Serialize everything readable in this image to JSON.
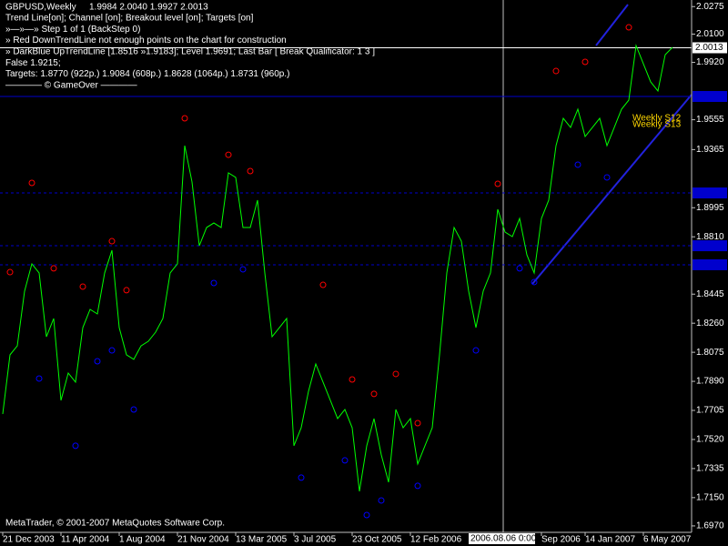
{
  "chart_data": {
    "type": "line",
    "title": "GBPUSD,Weekly",
    "subtitle": "1.9984 2.0040 1.9927 2.0013",
    "annotations": [
      "Trend Line[on]; Channel [on]; Breakout level [on]; Targets [on]",
      "»—»—» Step 1 of 1 (BackStep 0)",
      "» Red DownTrendLine not enough points on the chart for construction",
      "» DarkBlue UpTrendLine [1.8516 »1.9183]; Level 1.9691; Last Bar [ Break Qualificator: 1 3 ]",
      "False 1.9215;",
      "Targets: 1.8770 (922p.) 1.9084 (608p.) 1.8628 (1064p.) 1.8731 (960p.)",
      "———— © GameOver ————"
    ],
    "footer": "MetaTrader, © 2001-2007 MetaQuotes Software Corp.",
    "crosshair_label": "2006.08.06 0:00",
    "level_notes": [
      "Weekly S12",
      "Weekly S13"
    ],
    "categories": [
      "21 Dec 2003",
      null,
      null,
      null,
      null,
      null,
      null,
      null,
      "11 Apr 2004",
      null,
      null,
      null,
      null,
      null,
      null,
      null,
      "1 Aug 2004",
      null,
      null,
      null,
      null,
      null,
      null,
      null,
      "21 Nov 2004",
      null,
      null,
      null,
      null,
      null,
      null,
      null,
      "13 Mar 2005",
      null,
      null,
      null,
      null,
      null,
      null,
      null,
      "3 Jul 2005",
      null,
      null,
      null,
      null,
      null,
      null,
      null,
      "23 Oct 2005",
      null,
      null,
      null,
      null,
      null,
      null,
      null,
      "12 Feb 2006",
      null,
      null,
      null,
      null,
      null,
      null,
      null,
      null,
      null,
      null,
      null,
      null,
      null,
      null,
      null,
      null,
      null,
      "Sep 2006",
      null,
      null,
      null,
      null,
      null,
      "14 Jan 2007",
      null,
      null,
      null,
      null,
      null,
      null,
      null,
      "6 May 2007",
      null,
      null,
      null,
      null
    ],
    "series": [
      {
        "color": "#00ff00",
        "style": "line",
        "values": [
          1.7682,
          1.8059,
          1.8116,
          1.8464,
          1.8638,
          1.858,
          1.8174,
          1.829,
          1.7769,
          1.7943,
          1.7885,
          1.8232,
          1.8348,
          1.8319,
          1.858,
          1.8724,
          1.8232,
          1.8059,
          1.803,
          1.8116,
          1.8145,
          1.8203,
          1.829,
          1.858,
          1.8638,
          1.939,
          1.9159,
          1.8753,
          1.8869,
          1.8898,
          1.8869,
          1.9217,
          1.9188,
          1.8869,
          1.8869,
          1.9043,
          1.858,
          1.8174,
          1.8232,
          1.829,
          1.748,
          1.7595,
          1.7827,
          1.8001,
          1.7885,
          1.7769,
          1.7653,
          1.7711,
          1.7595,
          1.719,
          1.748,
          1.7653,
          1.7422,
          1.7248,
          1.7711,
          1.7595,
          1.7653,
          1.7364,
          1.748,
          1.7595,
          1.8059,
          1.858,
          1.8869,
          1.8782,
          1.8464,
          1.8232,
          1.8464,
          1.858,
          1.8985,
          1.884,
          1.8811,
          1.8927,
          1.8695,
          1.858,
          1.8927,
          1.9043,
          1.939,
          1.9564,
          1.9506,
          1.9622,
          1.9448,
          1.9506,
          1.9564,
          1.939,
          1.9506,
          1.9622,
          1.968,
          2.0027,
          1.9911,
          1.9796,
          1.9738,
          1.9969,
          2.0016
        ]
      },
      {
        "color": "#ff0000",
        "style": "marker",
        "values": [
          null,
          1.8585,
          null,
          null,
          1.9153,
          null,
          null,
          1.8609,
          null,
          null,
          null,
          1.8493,
          null,
          null,
          null,
          1.8782,
          null,
          1.847,
          null,
          null,
          null,
          null,
          null,
          null,
          null,
          1.9564,
          null,
          null,
          null,
          null,
          null,
          1.9332,
          null,
          null,
          1.9228,
          null,
          null,
          null,
          null,
          null,
          null,
          null,
          null,
          null,
          1.8504,
          null,
          null,
          null,
          1.7902,
          null,
          null,
          1.781,
          null,
          null,
          1.7937,
          null,
          null,
          1.7624,
          null,
          null,
          null,
          null,
          null,
          null,
          null,
          null,
          null,
          null,
          1.9147,
          null,
          null,
          null,
          null,
          null,
          null,
          null,
          1.9865,
          null,
          null,
          null,
          1.9923,
          null,
          null,
          null,
          null,
          null,
          2.0143,
          null,
          null,
          null,
          null,
          null,
          null
        ]
      },
      {
        "color": "#0000ff",
        "style": "marker",
        "values": [
          null,
          null,
          null,
          null,
          null,
          1.7908,
          null,
          null,
          null,
          null,
          1.748,
          null,
          null,
          1.8018,
          null,
          1.8087,
          null,
          null,
          1.7711,
          null,
          null,
          null,
          null,
          null,
          null,
          null,
          null,
          null,
          null,
          1.8516,
          null,
          null,
          null,
          1.8603,
          null,
          null,
          null,
          null,
          null,
          null,
          null,
          1.7277,
          null,
          null,
          null,
          null,
          null,
          1.7387,
          null,
          null,
          1.7039,
          null,
          1.7132,
          null,
          null,
          null,
          null,
          1.7225,
          null,
          null,
          null,
          null,
          null,
          null,
          null,
          1.8087,
          null,
          null,
          null,
          null,
          null,
          1.8609,
          null,
          1.8522,
          null,
          null,
          null,
          null,
          null,
          1.9269,
          null,
          null,
          null,
          1.9188,
          null,
          null,
          null,
          null,
          null,
          null,
          null,
          null,
          null
        ]
      }
    ],
    "levels": [
      {
        "value": 2.0013,
        "color": "#ffffff",
        "style": "solid",
        "labeled": true
      },
      {
        "value": 1.9703,
        "color": "#0000cd",
        "style": "solid",
        "labeled": false
      },
      {
        "value": 1.9089,
        "color": "#0000cd",
        "style": "dashed",
        "labeled": false
      },
      {
        "value": 1.8753,
        "color": "#0000cd",
        "style": "dashed",
        "labeled": false
      },
      {
        "value": 1.8632,
        "color": "#0000cd",
        "style": "dashed",
        "labeled": false
      }
    ],
    "ylim": [
      1.6929,
      2.0317
    ],
    "yticks": [
      2.0275,
      {
        "value": 2.01,
        "label": "2.0100"
      },
      {
        "value": 1.992,
        "label": "1.9920"
      },
      1.9555,
      1.9365,
      1.8995,
      {
        "value": 1.881,
        "label": "1.8810"
      },
      1.8445,
      {
        "value": 1.826,
        "label": "1.8260"
      },
      1.8075,
      {
        "value": 1.789,
        "label": "1.7890"
      },
      1.7705,
      {
        "value": 1.752,
        "label": "1.7520"
      },
      1.7335,
      {
        "value": 1.715,
        "label": "1.7150"
      },
      {
        "value": 1.697,
        "label": "1.6970"
      }
    ]
  }
}
